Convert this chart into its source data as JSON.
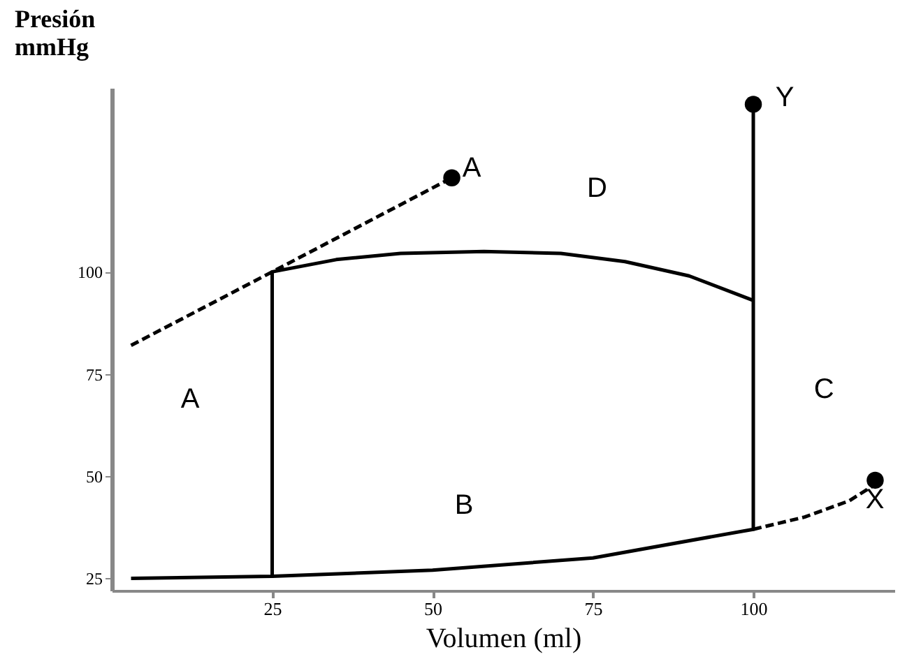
{
  "chart_data": {
    "type": "line",
    "xlabel": "Volumen (ml)",
    "ylabel": "Presión mmHg",
    "xlim": [
      0,
      122
    ],
    "ylim": [
      22,
      145
    ],
    "xticks": [
      25,
      50,
      75,
      100
    ],
    "yticks": [
      25,
      50,
      75,
      100
    ],
    "series": [
      {
        "color": "#000000",
        "line_style": "solid",
        "marker": "none",
        "x": [
          3,
          25,
          25,
          35,
          45,
          58,
          70,
          80,
          90,
          100
        ],
        "values": [
          25,
          25.5,
          100,
          103,
          104.5,
          105,
          104.5,
          102.5,
          99,
          93
        ]
      },
      {
        "color": "#000000",
        "line_style": "solid",
        "marker": "none",
        "x": [
          25,
          50,
          75,
          100,
          100
        ],
        "values": [
          25.5,
          27,
          30,
          37,
          141
        ]
      },
      {
        "color": "#000000",
        "line_style": "dashed",
        "marker": "none",
        "x": [
          100,
          108,
          115,
          119
        ],
        "values": [
          37,
          40,
          44,
          48
        ]
      },
      {
        "color": "#000000",
        "line_style": "dashed",
        "marker": "none",
        "x": [
          3,
          25,
          53
        ],
        "values": [
          82,
          100,
          123
        ]
      },
      {
        "type": "scatter",
        "color": "#000000",
        "marker": "circle",
        "x": [
          53,
          100,
          119
        ],
        "values": [
          123,
          141,
          49
        ]
      }
    ],
    "annotations": [
      "A",
      "Y",
      "X",
      "A",
      "B",
      "C",
      "D"
    ]
  }
}
